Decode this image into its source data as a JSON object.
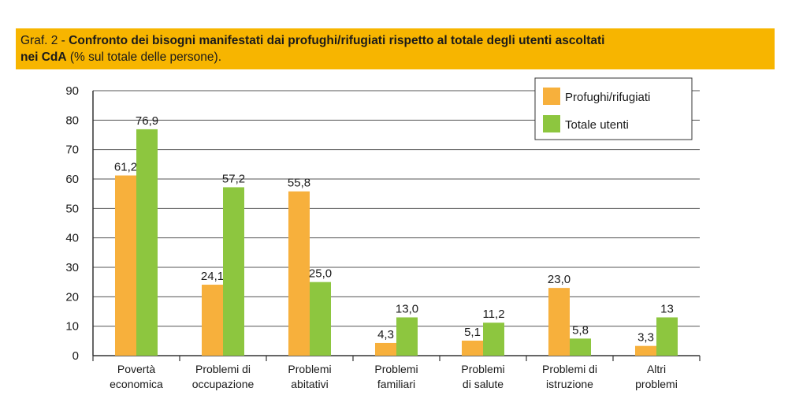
{
  "header": {
    "prefix": "Graf. 2 - ",
    "title_bold_1": "Confronto dei bisogni manifestati dai profughi/rifugiati rispetto al totale degli utenti ascoltati",
    "title_bold_2": "nei CdA",
    "title_rest": " (% sul totale delle persone)."
  },
  "colors": {
    "profughi": "#f7b03c",
    "totale": "#8dc63f",
    "title_bg": "#f7b500"
  },
  "chart_data": {
    "type": "bar",
    "categories": [
      [
        "Povertà",
        "economica"
      ],
      [
        "Problemi di",
        "occupazione"
      ],
      [
        "Problemi",
        "abitativi"
      ],
      [
        "Problemi",
        "familiari"
      ],
      [
        "Problemi",
        "di salute"
      ],
      [
        "Problemi di",
        "istruzione"
      ],
      [
        "Altri",
        "problemi"
      ]
    ],
    "series": [
      {
        "name": "Profughi/rifugiati",
        "values": [
          61.2,
          24.1,
          55.8,
          4.3,
          5.1,
          23.0,
          3.3
        ],
        "labels": [
          "61,2",
          "24,1",
          "55,8",
          "4,3",
          "5,1",
          "23,0",
          "3,3"
        ]
      },
      {
        "name": "Totale utenti",
        "values": [
          76.9,
          57.2,
          25.0,
          13.0,
          11.2,
          5.8,
          13
        ],
        "labels": [
          "76,9",
          "57,2",
          "25,0",
          "13,0",
          "11,2",
          "5,8",
          "13"
        ]
      }
    ],
    "yticks": [
      "0",
      "10",
      "20",
      "30",
      "40",
      "50",
      "60",
      "70",
      "80",
      "90"
    ],
    "ylim": [
      0,
      90
    ],
    "grid": true,
    "legend": "top-right"
  }
}
